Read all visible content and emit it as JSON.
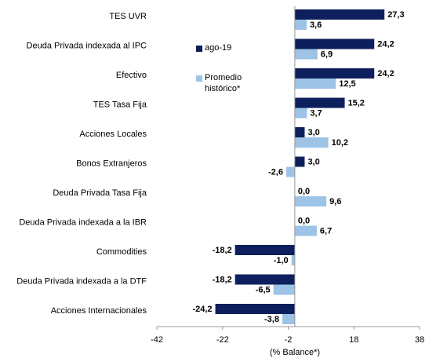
{
  "chart_data": {
    "type": "bar",
    "orientation": "horizontal",
    "x_label": "(% Balance*)",
    "categories": [
      "TES UVR",
      "Deuda Privada indexada al IPC",
      "Efectivo",
      "TES Tasa Fija",
      "Acciones Locales",
      "Bonos Extranjeros",
      "Deuda Privada Tasa Fija",
      "Deuda Privada indexada a la IBR",
      "Commodities",
      "Deuda Privada indexada a la DTF",
      "Acciones Internacionales"
    ],
    "series": [
      {
        "name": "ago-19",
        "color": "#0d1f5c",
        "values": [
          27.3,
          24.2,
          24.2,
          15.2,
          3.0,
          3.0,
          0.0,
          0.0,
          -18.2,
          -18.2,
          -24.2
        ],
        "value_labels": [
          "27,3",
          "24,2",
          "24,2",
          "15,2",
          "3,0",
          "3,0",
          "0,0",
          "0,0",
          "-18,2",
          "-18,2",
          "-24,2"
        ]
      },
      {
        "name": "Promedio histórico*",
        "color": "#9dc3e6",
        "values": [
          3.6,
          6.9,
          12.5,
          3.7,
          10.2,
          -2.6,
          9.6,
          6.7,
          -1.0,
          -6.5,
          -3.8
        ],
        "value_labels": [
          "3,6",
          "6,9",
          "12,5",
          "3,7",
          "10,2",
          "-2,6",
          "9,6",
          "6,7",
          "-1,0",
          "-6,5",
          "-3,8"
        ]
      }
    ],
    "xlim": [
      -42,
      38
    ],
    "xticks": [
      -42,
      -22,
      -2,
      18,
      38
    ]
  }
}
